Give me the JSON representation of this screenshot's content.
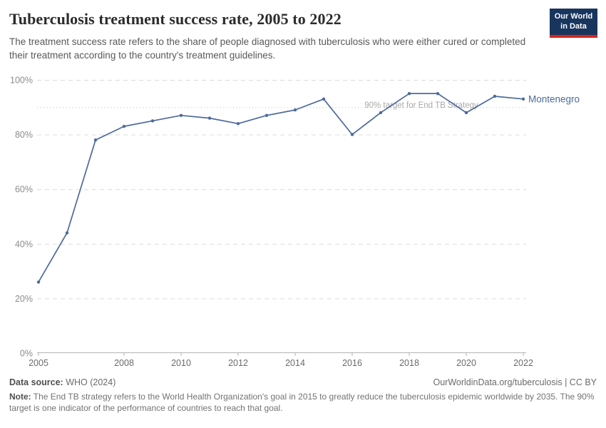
{
  "header": {
    "title": "Tuberculosis treatment success rate, 2005 to 2022",
    "subtitle": "The treatment success rate refers to the share of people diagnosed with tuberculosis who were either cured or completed their treatment according to the country's treatment guidelines.",
    "logo": {
      "line1": "Our World",
      "line2": "in Data"
    }
  },
  "colors": {
    "series_blue": "#4C6A9C",
    "grid_gray": "#dcdcdc",
    "target_gray": "#cfcfcf",
    "axis_gray": "#b3b3b3",
    "tick_label_gray": "#8c8c8c",
    "x_label_gray": "#6b6b6b",
    "annotation_gray": "#a9a9a9",
    "logo_navy": "#18355e",
    "logo_red": "#d7261d"
  },
  "chart_data": {
    "type": "line",
    "title": "Tuberculosis treatment success rate, 2005 to 2022",
    "xlabel": "",
    "ylabel": "",
    "xlim": [
      2005,
      2022
    ],
    "ylim": [
      0,
      100
    ],
    "grid": "horizontal-dashed",
    "legend_position": "end-of-line",
    "x": [
      2005,
      2006,
      2007,
      2008,
      2009,
      2010,
      2011,
      2012,
      2013,
      2014,
      2015,
      2016,
      2017,
      2018,
      2019,
      2020,
      2021,
      2022
    ],
    "series": [
      {
        "name": "Montenegro",
        "color": "#4C6A9C",
        "values": [
          26,
          44,
          78,
          83,
          85,
          87,
          86,
          84,
          87,
          89,
          93,
          80,
          88,
          95,
          95,
          88,
          94,
          93
        ]
      }
    ],
    "x_ticks": [
      2005,
      2008,
      2010,
      2012,
      2014,
      2016,
      2018,
      2020,
      2022
    ],
    "y_ticks": [
      {
        "value": 0,
        "label": "0%"
      },
      {
        "value": 20,
        "label": "20%"
      },
      {
        "value": 40,
        "label": "40%"
      },
      {
        "value": 60,
        "label": "60%"
      },
      {
        "value": 80,
        "label": "80%"
      },
      {
        "value": 100,
        "label": "100%"
      }
    ],
    "annotation": {
      "value": 90,
      "label": "90% target for End TB Strategy"
    }
  },
  "footer": {
    "datasource_label": "Data source:",
    "datasource_value": " WHO (2024)",
    "link": "OurWorldinData.org/tuberculosis | CC BY",
    "note_label": "Note:",
    "note_value": " The End TB strategy refers to the World Health Organization's goal in 2015 to greatly reduce the tuberculosis epidemic worldwide by 2035. The 90% target is one indicator of the performance of countries to reach that goal."
  }
}
